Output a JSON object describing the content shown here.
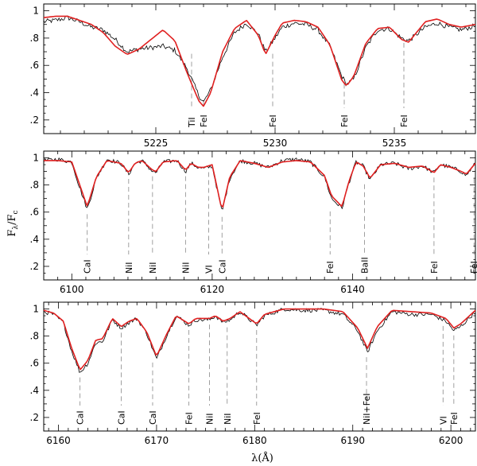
{
  "chart_data": [
    {
      "type": "line",
      "xlim": [
        5220.3,
        5238.4
      ],
      "ylim": [
        0.1,
        1.05
      ],
      "x_ticks": [
        5225,
        5230,
        5235
      ],
      "x_tick_labels": [
        "5225",
        "5230",
        "5235"
      ],
      "y_ticks": [
        0.2,
        0.4,
        0.6,
        0.8,
        1.0
      ],
      "y_tick_labels": [
        ".2",
        ".4",
        ".6",
        ".8",
        "1"
      ],
      "continuum_noise": 0.018,
      "series": [
        {
          "role": "observed",
          "color": "#000000",
          "x": [
            5220.3,
            5220.8,
            5221.3,
            5221.8,
            5222.3,
            5222.8,
            5223.3,
            5223.8,
            5224.3,
            5224.8,
            5225.3,
            5225.8,
            5226.3,
            5226.8,
            5227.0,
            5227.3,
            5227.8,
            5228.3,
            5228.8,
            5229.3,
            5229.6,
            5230.0,
            5230.3,
            5230.8,
            5231.3,
            5231.8,
            5232.3,
            5232.8,
            5233.0,
            5233.3,
            5233.8,
            5234.3,
            5234.8,
            5235.3,
            5235.6,
            5236.3,
            5236.8,
            5237.3,
            5237.8,
            5238.4
          ],
          "y": [
            0.92,
            0.93,
            0.95,
            0.92,
            0.88,
            0.86,
            0.79,
            0.7,
            0.72,
            0.73,
            0.74,
            0.71,
            0.58,
            0.38,
            0.33,
            0.42,
            0.66,
            0.84,
            0.91,
            0.83,
            0.7,
            0.8,
            0.88,
            0.91,
            0.9,
            0.86,
            0.74,
            0.52,
            0.46,
            0.5,
            0.73,
            0.86,
            0.87,
            0.8,
            0.78,
            0.88,
            0.91,
            0.88,
            0.86,
            0.89
          ]
        },
        {
          "role": "synthetic",
          "color": "#e02020",
          "x": [
            5220.3,
            5220.8,
            5221.3,
            5221.8,
            5222.3,
            5222.8,
            5223.3,
            5223.8,
            5224.3,
            5224.8,
            5225.3,
            5225.8,
            5226.3,
            5226.8,
            5227.0,
            5227.3,
            5227.8,
            5228.3,
            5228.8,
            5229.3,
            5229.6,
            5230.0,
            5230.3,
            5230.8,
            5231.3,
            5231.8,
            5232.3,
            5232.8,
            5233.0,
            5233.3,
            5233.8,
            5234.3,
            5234.8,
            5235.3,
            5235.6,
            5236.3,
            5236.8,
            5237.3,
            5237.8,
            5238.4
          ],
          "y": [
            0.95,
            0.96,
            0.96,
            0.93,
            0.9,
            0.84,
            0.74,
            0.68,
            0.72,
            0.79,
            0.86,
            0.78,
            0.55,
            0.34,
            0.3,
            0.4,
            0.7,
            0.87,
            0.93,
            0.82,
            0.68,
            0.82,
            0.91,
            0.93,
            0.92,
            0.88,
            0.75,
            0.49,
            0.45,
            0.52,
            0.76,
            0.87,
            0.88,
            0.79,
            0.77,
            0.92,
            0.94,
            0.9,
            0.88,
            0.9
          ]
        }
      ],
      "line_ids": [
        {
          "label": "TiI",
          "x": 5226.5,
          "y": 0.72
        },
        {
          "label": "FeI",
          "x": 5227.0,
          "y": 0.38
        },
        {
          "label": "FeI",
          "x": 5229.9,
          "y": 0.72
        },
        {
          "label": "FeI",
          "x": 5232.9,
          "y": 0.5
        },
        {
          "label": "FeI",
          "x": 5235.4,
          "y": 0.8
        }
      ]
    },
    {
      "type": "line",
      "xlim": [
        6096.0,
        6157.5
      ],
      "ylim": [
        0.1,
        1.05
      ],
      "x_ticks": [
        6100,
        6120,
        6140
      ],
      "x_tick_labels": [
        "6100",
        "6120",
        "6140"
      ],
      "y_ticks": [
        0.2,
        0.4,
        0.6,
        0.8,
        1.0
      ],
      "y_tick_labels": [
        ".2",
        ".4",
        ".6",
        ".8",
        "1"
      ],
      "continuum_noise": 0.015,
      "series": [
        {
          "role": "observed",
          "color": "#000000",
          "x": [
            6096.0,
            6098.0,
            6100.0,
            6101.0,
            6102.2,
            6103.5,
            6105.0,
            6107.0,
            6108.1,
            6109.0,
            6110.0,
            6111.5,
            6112.0,
            6113.0,
            6115.0,
            6116.2,
            6117.0,
            6118.0,
            6118.8,
            6120.0,
            6121.4,
            6122.5,
            6124.0,
            6126.0,
            6128.0,
            6130.0,
            6132.0,
            6134.0,
            6136.0,
            6137.0,
            6138.5,
            6139.5,
            6140.5,
            6141.5,
            6142.5,
            6144.0,
            6146.0,
            6148.0,
            6150.0,
            6151.6,
            6152.5,
            6154.0,
            6155.5,
            6156.2,
            6157.5
          ],
          "y": [
            0.98,
            0.99,
            0.97,
            0.8,
            0.62,
            0.85,
            0.99,
            0.96,
            0.88,
            0.96,
            0.98,
            0.9,
            0.89,
            0.97,
            0.98,
            0.9,
            0.96,
            0.93,
            0.92,
            0.94,
            0.6,
            0.85,
            0.98,
            0.96,
            0.93,
            0.98,
            0.99,
            0.97,
            0.86,
            0.7,
            0.63,
            0.82,
            0.97,
            0.94,
            0.84,
            0.95,
            0.96,
            0.92,
            0.94,
            0.89,
            0.95,
            0.93,
            0.9,
            0.87,
            0.96
          ]
        },
        {
          "role": "synthetic",
          "color": "#e02020",
          "x": [
            6096.0,
            6098.0,
            6100.0,
            6101.0,
            6102.2,
            6103.5,
            6105.0,
            6107.0,
            6108.1,
            6109.0,
            6110.0,
            6111.5,
            6112.0,
            6113.0,
            6115.0,
            6116.2,
            6117.0,
            6118.0,
            6118.8,
            6120.0,
            6121.4,
            6122.5,
            6124.0,
            6126.0,
            6128.0,
            6130.0,
            6132.0,
            6134.0,
            6136.0,
            6137.0,
            6138.5,
            6139.5,
            6140.5,
            6141.5,
            6142.5,
            6144.0,
            6146.0,
            6148.0,
            6150.0,
            6151.6,
            6152.5,
            6154.0,
            6155.5,
            6156.2,
            6157.5
          ],
          "y": [
            0.98,
            0.98,
            0.97,
            0.82,
            0.64,
            0.86,
            0.98,
            0.96,
            0.89,
            0.96,
            0.98,
            0.91,
            0.9,
            0.97,
            0.98,
            0.91,
            0.96,
            0.93,
            0.93,
            0.95,
            0.61,
            0.86,
            0.98,
            0.96,
            0.93,
            0.97,
            0.98,
            0.97,
            0.87,
            0.72,
            0.64,
            0.83,
            0.97,
            0.94,
            0.85,
            0.95,
            0.96,
            0.93,
            0.94,
            0.89,
            0.95,
            0.93,
            0.9,
            0.88,
            0.96
          ]
        }
      ],
      "line_ids": [
        {
          "label": "CaI",
          "x": 6102.2,
          "y": 0.62
        },
        {
          "label": "NiI",
          "x": 6108.1,
          "y": 0.88
        },
        {
          "label": "NiI",
          "x": 6111.5,
          "y": 0.9
        },
        {
          "label": "NiI",
          "x": 6116.2,
          "y": 0.9
        },
        {
          "label": "VI",
          "x": 6119.5,
          "y": 0.93
        },
        {
          "label": "CaI",
          "x": 6121.4,
          "y": 0.6
        },
        {
          "label": "FeI",
          "x": 6136.8,
          "y": 0.64
        },
        {
          "label": "BaII",
          "x": 6141.7,
          "y": 0.84
        },
        {
          "label": "FeI",
          "x": 6151.6,
          "y": 0.89
        },
        {
          "label": "FeI",
          "x": 6157.3,
          "y": 0.88
        }
      ]
    },
    {
      "type": "line",
      "xlim": [
        6158.5,
        6202.5
      ],
      "ylim": [
        0.1,
        1.05
      ],
      "x_ticks": [
        6160,
        6170,
        6180,
        6190,
        6200
      ],
      "x_tick_labels": [
        "6160",
        "6170",
        "6180",
        "6190",
        "6200"
      ],
      "y_ticks": [
        0.2,
        0.4,
        0.6,
        0.8,
        1.0
      ],
      "y_tick_labels": [
        ".2",
        ".4",
        ".6",
        ".8",
        "1"
      ],
      "continuum_noise": 0.015,
      "series": [
        {
          "role": "observed",
          "color": "#000000",
          "x": [
            6158.5,
            6159.5,
            6160.5,
            6161.3,
            6162.2,
            6163.0,
            6163.8,
            6164.5,
            6165.5,
            6166.4,
            6167.2,
            6168.0,
            6169.0,
            6170.0,
            6171.0,
            6172.0,
            6173.3,
            6174.0,
            6175.4,
            6176.0,
            6176.8,
            6177.5,
            6178.5,
            6180.2,
            6181.0,
            6183.0,
            6185.0,
            6187.0,
            6189.0,
            6190.5,
            6191.5,
            6192.5,
            6194.0,
            6196.0,
            6198.0,
            6199.5,
            6200.3,
            6201.0,
            6202.5
          ],
          "y": [
            0.98,
            0.96,
            0.9,
            0.7,
            0.53,
            0.6,
            0.75,
            0.76,
            0.92,
            0.86,
            0.9,
            0.93,
            0.82,
            0.63,
            0.8,
            0.95,
            0.88,
            0.92,
            0.92,
            0.95,
            0.9,
            0.92,
            0.98,
            0.88,
            0.95,
            1.0,
            0.99,
            0.99,
            0.96,
            0.84,
            0.68,
            0.84,
            0.98,
            0.96,
            0.96,
            0.91,
            0.84,
            0.87,
            0.98
          ]
        },
        {
          "role": "synthetic",
          "color": "#e02020",
          "x": [
            6158.5,
            6159.5,
            6160.5,
            6161.3,
            6162.2,
            6163.0,
            6163.8,
            6164.5,
            6165.5,
            6166.4,
            6167.2,
            6168.0,
            6169.0,
            6170.0,
            6171.0,
            6172.0,
            6173.3,
            6174.0,
            6175.4,
            6176.0,
            6176.8,
            6177.5,
            6178.5,
            6180.2,
            6181.0,
            6183.0,
            6185.0,
            6187.0,
            6189.0,
            6190.5,
            6191.5,
            6192.5,
            6194.0,
            6196.0,
            6198.0,
            6199.5,
            6200.3,
            6201.0,
            6202.5
          ],
          "y": [
            0.99,
            0.97,
            0.91,
            0.72,
            0.55,
            0.62,
            0.77,
            0.78,
            0.93,
            0.87,
            0.91,
            0.93,
            0.83,
            0.65,
            0.81,
            0.95,
            0.89,
            0.93,
            0.93,
            0.95,
            0.91,
            0.93,
            0.98,
            0.89,
            0.96,
            1.0,
            1.0,
            1.0,
            0.98,
            0.86,
            0.71,
            0.87,
            0.99,
            0.98,
            0.97,
            0.93,
            0.86,
            0.89,
            0.99
          ]
        }
      ],
      "line_ids": [
        {
          "label": "CaI",
          "x": 6162.2,
          "y": 0.53
        },
        {
          "label": "CaI",
          "x": 6166.4,
          "y": 0.86
        },
        {
          "label": "CaI",
          "x": 6169.6,
          "y": 0.64
        },
        {
          "label": "FeI",
          "x": 6173.3,
          "y": 0.88
        },
        {
          "label": "NiI",
          "x": 6175.4,
          "y": 0.92
        },
        {
          "label": "NiI",
          "x": 6177.2,
          "y": 0.9
        },
        {
          "label": "FeI",
          "x": 6180.2,
          "y": 0.88
        },
        {
          "label": "NiI+FeI",
          "x": 6191.4,
          "y": 0.68
        },
        {
          "label": "VI",
          "x": 6199.2,
          "y": 0.91
        },
        {
          "label": "FeI",
          "x": 6200.3,
          "y": 0.84
        }
      ]
    }
  ],
  "axis_titles": {
    "ylabel_main": "F",
    "ylabel_sub1": "λ",
    "ylabel_mid": "/F",
    "ylabel_sub2": "c",
    "xlabel": "λ(Å)"
  }
}
